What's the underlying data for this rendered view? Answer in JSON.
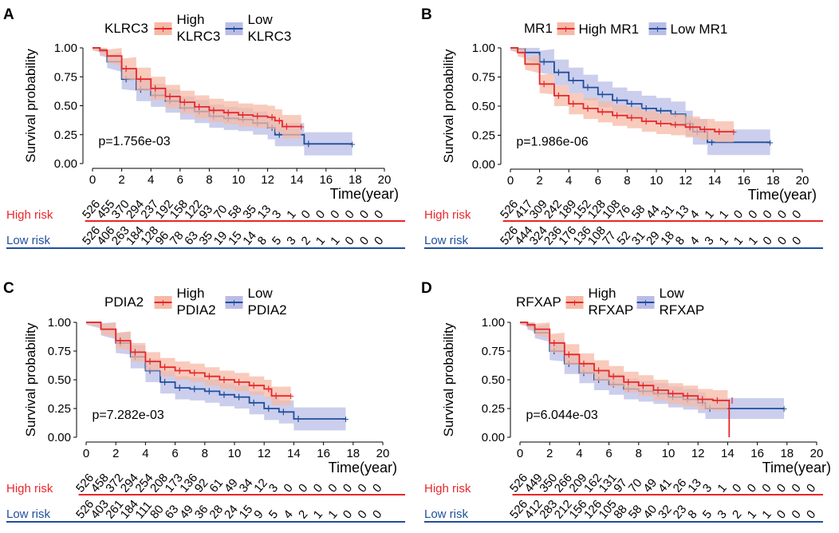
{
  "colors": {
    "high": "#e8262b",
    "low": "#1f4e9c",
    "high_ci": "#f6b9a6",
    "low_ci": "#b9bde6",
    "axis": "#000000"
  },
  "chart_data": [
    {
      "panel_label": "A",
      "type": "line",
      "gene": "KLRC3",
      "legend_layout": "two-line",
      "legend": {
        "high": [
          "High",
          "KLRC3"
        ],
        "low": [
          "Low",
          "KLRC3"
        ]
      },
      "ylabel": "Survival probability",
      "xlabel": "Time(year)",
      "xlim": [
        0,
        20
      ],
      "ylim": [
        0,
        1
      ],
      "x_ticks": [
        "0",
        "2",
        "4",
        "6",
        "8",
        "10",
        "12",
        "14",
        "16",
        "18",
        "20"
      ],
      "y_ticks": [
        "0.00",
        "0.25",
        "0.50",
        "0.75",
        "1.00"
      ],
      "pvalue": "p=1.756e-03",
      "series": [
        {
          "name": "High",
          "end": 14.3,
          "ci": 0.1,
          "points": [
            [
              0,
              1
            ],
            [
              0.5,
              0.98
            ],
            [
              1,
              0.93
            ],
            [
              2,
              0.82
            ],
            [
              3,
              0.73
            ],
            [
              4,
              0.65
            ],
            [
              5,
              0.58
            ],
            [
              6,
              0.53
            ],
            [
              7,
              0.49
            ],
            [
              8,
              0.46
            ],
            [
              9,
              0.44
            ],
            [
              10,
              0.42
            ],
            [
              11,
              0.41
            ],
            [
              12,
              0.4
            ],
            [
              12.5,
              0.37
            ],
            [
              13,
              0.32
            ],
            [
              14.3,
              0.32
            ]
          ]
        },
        {
          "name": "Low",
          "end": 17.8,
          "ci": 0.1,
          "points": [
            [
              0,
              1
            ],
            [
              0.5,
              0.97
            ],
            [
              1,
              0.88
            ],
            [
              2,
              0.73
            ],
            [
              3,
              0.64
            ],
            [
              4,
              0.59
            ],
            [
              5,
              0.54
            ],
            [
              6,
              0.48
            ],
            [
              7,
              0.45
            ],
            [
              8,
              0.41
            ],
            [
              9,
              0.39
            ],
            [
              10,
              0.38
            ],
            [
              11,
              0.35
            ],
            [
              12,
              0.31
            ],
            [
              12.5,
              0.25
            ],
            [
              14.5,
              0.17
            ],
            [
              17.8,
              0.17
            ]
          ]
        }
      ],
      "risk_table": {
        "high_label": "High risk",
        "low_label": "Low risk",
        "high": [
          "526",
          "455",
          "370",
          "294",
          "237",
          "192",
          "158",
          "122",
          "93",
          "70",
          "58",
          "35",
          "13",
          "3",
          "1",
          "0",
          "0",
          "0",
          "0",
          "0",
          "0"
        ],
        "low": [
          "526",
          "406",
          "263",
          "184",
          "128",
          "96",
          "78",
          "63",
          "35",
          "19",
          "15",
          "14",
          "8",
          "5",
          "3",
          "2",
          "1",
          "1",
          "0",
          "0",
          "0"
        ]
      }
    },
    {
      "panel_label": "B",
      "type": "line",
      "gene": "MR1",
      "legend_layout": "one-line",
      "legend": {
        "high": [
          "High MR1"
        ],
        "low": [
          "Low MR1"
        ]
      },
      "ylabel": "Survival probability",
      "xlabel": "Time(year)",
      "xlim": [
        0,
        20
      ],
      "ylim": [
        0,
        1
      ],
      "x_ticks": [
        "0",
        "2",
        "4",
        "6",
        "8",
        "10",
        "12",
        "14",
        "16",
        "18",
        "20"
      ],
      "y_ticks": [
        "0.00",
        "0.25",
        "0.50",
        "0.75",
        "1.00"
      ],
      "pvalue": "p=1.986e-06",
      "series": [
        {
          "name": "High",
          "end": 15.3,
          "ci": 0.09,
          "points": [
            [
              0,
              1
            ],
            [
              0.5,
              0.96
            ],
            [
              1,
              0.86
            ],
            [
              2,
              0.69
            ],
            [
              3,
              0.59
            ],
            [
              4,
              0.52
            ],
            [
              5,
              0.48
            ],
            [
              6,
              0.45
            ],
            [
              7,
              0.42
            ],
            [
              8,
              0.4
            ],
            [
              9,
              0.37
            ],
            [
              10,
              0.35
            ],
            [
              11,
              0.34
            ],
            [
              12,
              0.32
            ],
            [
              13,
              0.3
            ],
            [
              14,
              0.28
            ],
            [
              15.3,
              0.28
            ]
          ]
        },
        {
          "name": "Low",
          "end": 17.8,
          "ci": 0.11,
          "points": [
            [
              0,
              1
            ],
            [
              0.5,
              0.99
            ],
            [
              1,
              0.96
            ],
            [
              2,
              0.88
            ],
            [
              3,
              0.79
            ],
            [
              4,
              0.72
            ],
            [
              5,
              0.66
            ],
            [
              6,
              0.6
            ],
            [
              7,
              0.55
            ],
            [
              8,
              0.52
            ],
            [
              9,
              0.48
            ],
            [
              10,
              0.46
            ],
            [
              11,
              0.43
            ],
            [
              12,
              0.35
            ],
            [
              12.5,
              0.28
            ],
            [
              13.5,
              0.19
            ],
            [
              17.8,
              0.19
            ]
          ]
        }
      ],
      "risk_table": {
        "high_label": "High risk",
        "low_label": "Low risk",
        "high": [
          "526",
          "417",
          "309",
          "242",
          "189",
          "152",
          "128",
          "108",
          "76",
          "58",
          "44",
          "31",
          "13",
          "4",
          "1",
          "1",
          "0",
          "0",
          "0",
          "0",
          "0"
        ],
        "low": [
          "526",
          "444",
          "324",
          "236",
          "176",
          "136",
          "108",
          "77",
          "52",
          "31",
          "29",
          "18",
          "8",
          "4",
          "3",
          "1",
          "1",
          "1",
          "0",
          "0",
          "0"
        ]
      }
    },
    {
      "panel_label": "C",
      "type": "line",
      "gene": "PDIA2",
      "legend_layout": "two-line",
      "legend": {
        "high": [
          "High",
          "PDIA2"
        ],
        "low": [
          "Low",
          "PDIA2"
        ]
      },
      "ylabel": "Survival probability",
      "xlabel": "Time(year)",
      "xlim": [
        0,
        20
      ],
      "ylim": [
        0,
        1
      ],
      "x_ticks": [
        "0",
        "2",
        "4",
        "6",
        "8",
        "10",
        "12",
        "14",
        "16",
        "18",
        "20"
      ],
      "y_ticks": [
        "0.00",
        "0.25",
        "0.50",
        "0.75",
        "1.00"
      ],
      "pvalue": "p=7.282e-03",
      "series": [
        {
          "name": "High",
          "end": 13.8,
          "ci": 0.08,
          "points": [
            [
              0,
              1
            ],
            [
              1,
              0.94
            ],
            [
              2,
              0.84
            ],
            [
              3,
              0.74
            ],
            [
              4,
              0.66
            ],
            [
              5,
              0.61
            ],
            [
              6,
              0.58
            ],
            [
              7,
              0.56
            ],
            [
              8,
              0.53
            ],
            [
              9,
              0.5
            ],
            [
              10,
              0.48
            ],
            [
              11,
              0.45
            ],
            [
              12,
              0.42
            ],
            [
              12.5,
              0.36
            ],
            [
              13.8,
              0.36
            ]
          ]
        },
        {
          "name": "Low",
          "end": 17.5,
          "ci": 0.1,
          "points": [
            [
              0,
              1
            ],
            [
              1,
              0.94
            ],
            [
              2,
              0.82
            ],
            [
              3,
              0.7
            ],
            [
              4,
              0.58
            ],
            [
              5,
              0.48
            ],
            [
              6,
              0.43
            ],
            [
              7,
              0.42
            ],
            [
              8,
              0.4
            ],
            [
              9,
              0.37
            ],
            [
              10,
              0.35
            ],
            [
              11,
              0.3
            ],
            [
              12,
              0.25
            ],
            [
              13,
              0.22
            ],
            [
              14,
              0.16
            ],
            [
              17.5,
              0.16
            ]
          ]
        }
      ],
      "risk_table": {
        "high_label": "High risk",
        "low_label": "Low risk",
        "high": [
          "526",
          "458",
          "372",
          "294",
          "254",
          "208",
          "173",
          "136",
          "92",
          "61",
          "49",
          "34",
          "12",
          "3",
          "0",
          "0",
          "0",
          "0",
          "0",
          "0",
          "0"
        ],
        "low": [
          "526",
          "403",
          "261",
          "184",
          "111",
          "80",
          "63",
          "49",
          "36",
          "28",
          "24",
          "15",
          "9",
          "5",
          "4",
          "2",
          "1",
          "1",
          "0",
          "0",
          "0"
        ]
      }
    },
    {
      "panel_label": "D",
      "type": "line",
      "gene": "RFXAP",
      "legend_layout": "two-line",
      "legend": {
        "high": [
          "High",
          "RFXAP"
        ],
        "low": [
          "Low",
          "RFXAP"
        ]
      },
      "ylabel": "Survival probability",
      "xlabel": "Time(year)",
      "xlim": [
        0,
        20
      ],
      "ylim": [
        0,
        1
      ],
      "x_ticks": [
        "0",
        "2",
        "4",
        "6",
        "8",
        "10",
        "12",
        "14",
        "16",
        "18",
        "20"
      ],
      "y_ticks": [
        "0.00",
        "0.25",
        "0.50",
        "0.75",
        "1.00"
      ],
      "pvalue": "p=6.044e-03",
      "series": [
        {
          "name": "High",
          "end": 14.1,
          "ci": 0.09,
          "drop_to_zero": true,
          "points": [
            [
              0,
              1
            ],
            [
              0.5,
              0.98
            ],
            [
              1,
              0.94
            ],
            [
              2,
              0.82
            ],
            [
              3,
              0.72
            ],
            [
              4,
              0.64
            ],
            [
              5,
              0.58
            ],
            [
              6,
              0.53
            ],
            [
              7,
              0.48
            ],
            [
              8,
              0.45
            ],
            [
              9,
              0.41
            ],
            [
              10,
              0.38
            ],
            [
              11,
              0.36
            ],
            [
              12,
              0.33
            ],
            [
              13,
              0.32
            ],
            [
              14,
              0.32
            ],
            [
              14.1,
              0
            ]
          ]
        },
        {
          "name": "Low",
          "end": 17.8,
          "ci": 0.09,
          "points": [
            [
              0,
              1
            ],
            [
              0.5,
              0.97
            ],
            [
              1,
              0.91
            ],
            [
              2,
              0.75
            ],
            [
              3,
              0.64
            ],
            [
              4,
              0.56
            ],
            [
              5,
              0.5
            ],
            [
              6,
              0.46
            ],
            [
              7,
              0.42
            ],
            [
              8,
              0.4
            ],
            [
              9,
              0.38
            ],
            [
              10,
              0.35
            ],
            [
              11,
              0.33
            ],
            [
              12,
              0.3
            ],
            [
              12.5,
              0.25
            ],
            [
              17.8,
              0.25
            ]
          ]
        }
      ],
      "risk_table": {
        "high_label": "High risk",
        "low_label": "Low risk",
        "high": [
          "526",
          "449",
          "350",
          "266",
          "209",
          "162",
          "131",
          "97",
          "70",
          "49",
          "41",
          "26",
          "13",
          "3",
          "1",
          "0",
          "0",
          "0",
          "0",
          "0",
          "0"
        ],
        "low": [
          "526",
          "412",
          "283",
          "212",
          "156",
          "126",
          "105",
          "88",
          "58",
          "40",
          "32",
          "23",
          "8",
          "5",
          "3",
          "2",
          "1",
          "1",
          "0",
          "0",
          "0"
        ]
      }
    }
  ]
}
